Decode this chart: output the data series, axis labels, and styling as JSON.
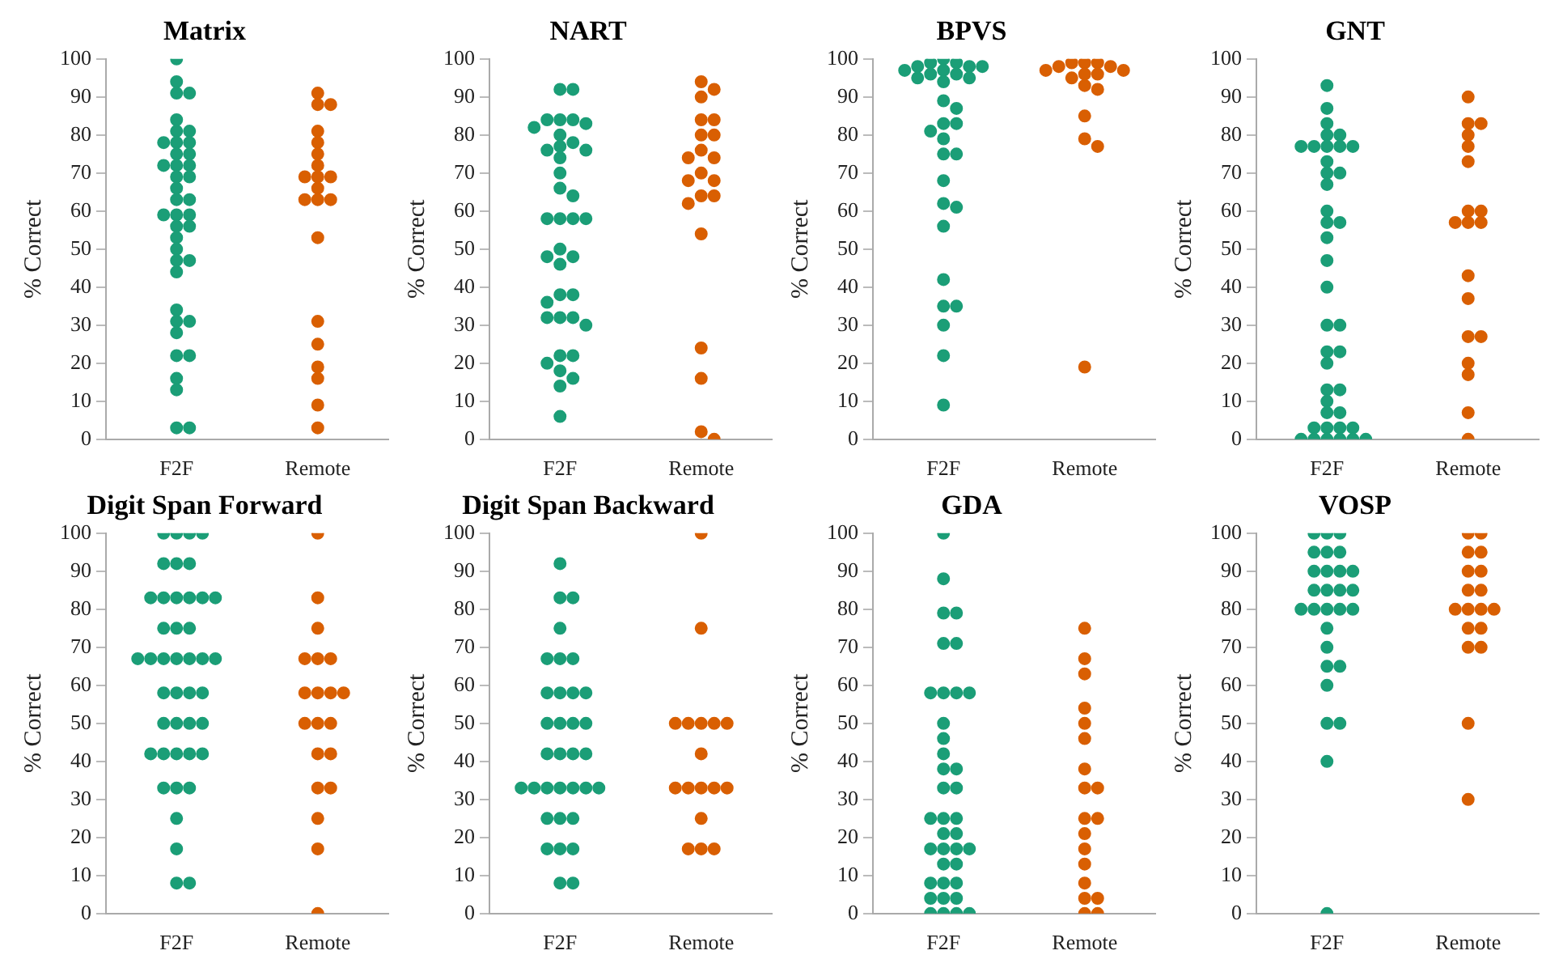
{
  "chart_data": [
    {
      "type": "scatter",
      "title": "Matrix",
      "ylabel": "% Correct",
      "categories": [
        "F2F",
        "Remote"
      ],
      "ylim": [
        0,
        100
      ],
      "yticks": [
        0,
        10,
        20,
        30,
        40,
        50,
        60,
        70,
        80,
        90,
        100
      ],
      "grid": false,
      "legend": false,
      "marker": "circle",
      "series": [
        {
          "color": "#1b9e77",
          "x": [
            "F2F",
            "F2F",
            "F2F",
            "F2F",
            "F2F",
            "F2F",
            "F2F",
            "F2F",
            "F2F",
            "F2F",
            "F2F",
            "F2F",
            "F2F",
            "F2F",
            "F2F",
            "F2F",
            "F2F",
            "F2F",
            "F2F",
            "F2F",
            "F2F",
            "F2F",
            "F2F",
            "F2F",
            "F2F",
            "F2F",
            "F2F",
            "F2F",
            "F2F",
            "F2F",
            "F2F",
            "F2F",
            "F2F",
            "F2F",
            "F2F",
            "F2F",
            "F2F",
            "F2F",
            "F2F",
            "F2F"
          ],
          "values": [
            100,
            94,
            91,
            91,
            84,
            81,
            81,
            78,
            78,
            78,
            75,
            75,
            72,
            72,
            72,
            69,
            69,
            66,
            63,
            63,
            59,
            59,
            59,
            56,
            56,
            53,
            50,
            47,
            47,
            44,
            34,
            31,
            31,
            28,
            22,
            22,
            16,
            13,
            3,
            3
          ]
        },
        {
          "color": "#d95f02",
          "x": [
            "Remote",
            "Remote",
            "Remote",
            "Remote",
            "Remote",
            "Remote",
            "Remote",
            "Remote",
            "Remote",
            "Remote",
            "Remote",
            "Remote",
            "Remote",
            "Remote",
            "Remote",
            "Remote",
            "Remote",
            "Remote",
            "Remote",
            "Remote",
            "Remote"
          ],
          "values": [
            91,
            88,
            88,
            81,
            78,
            75,
            72,
            69,
            69,
            69,
            66,
            63,
            63,
            63,
            53,
            31,
            25,
            19,
            16,
            9,
            3
          ]
        }
      ]
    },
    {
      "type": "scatter",
      "title": "NART",
      "ylabel": "% Correct",
      "categories": [
        "F2F",
        "Remote"
      ],
      "ylim": [
        0,
        100
      ],
      "yticks": [
        0,
        10,
        20,
        30,
        40,
        50,
        60,
        70,
        80,
        90,
        100
      ],
      "grid": false,
      "legend": false,
      "marker": "circle",
      "series": [
        {
          "color": "#1b9e77",
          "x": [
            "F2F",
            "F2F",
            "F2F",
            "F2F",
            "F2F",
            "F2F",
            "F2F",
            "F2F",
            "F2F",
            "F2F",
            "F2F",
            "F2F",
            "F2F",
            "F2F",
            "F2F",
            "F2F",
            "F2F",
            "F2F",
            "F2F",
            "F2F",
            "F2F",
            "F2F",
            "F2F",
            "F2F",
            "F2F",
            "F2F",
            "F2F",
            "F2F",
            "F2F",
            "F2F",
            "F2F",
            "F2F",
            "F2F",
            "F2F",
            "F2F",
            "F2F",
            "F2F",
            "F2F"
          ],
          "values": [
            92,
            92,
            84,
            84,
            84,
            83,
            82,
            80,
            78,
            77,
            76,
            76,
            74,
            70,
            66,
            64,
            58,
            58,
            58,
            58,
            50,
            48,
            48,
            46,
            38,
            38,
            36,
            32,
            32,
            32,
            30,
            22,
            22,
            20,
            18,
            16,
            14,
            6
          ]
        },
        {
          "color": "#d95f02",
          "x": [
            "Remote",
            "Remote",
            "Remote",
            "Remote",
            "Remote",
            "Remote",
            "Remote",
            "Remote",
            "Remote",
            "Remote",
            "Remote",
            "Remote",
            "Remote",
            "Remote",
            "Remote",
            "Remote",
            "Remote",
            "Remote",
            "Remote",
            "Remote",
            "Remote"
          ],
          "values": [
            94,
            92,
            90,
            84,
            84,
            80,
            80,
            76,
            74,
            74,
            70,
            68,
            68,
            64,
            64,
            62,
            54,
            24,
            16,
            2,
            0
          ]
        }
      ]
    },
    {
      "type": "scatter",
      "title": "BPVS",
      "ylabel": "% Correct",
      "categories": [
        "F2F",
        "Remote"
      ],
      "ylim": [
        0,
        100
      ],
      "yticks": [
        0,
        10,
        20,
        30,
        40,
        50,
        60,
        70,
        80,
        90,
        100
      ],
      "grid": false,
      "legend": false,
      "marker": "circle",
      "series": [
        {
          "color": "#1b9e77",
          "x": [
            "F2F",
            "F2F",
            "F2F",
            "F2F",
            "F2F",
            "F2F",
            "F2F",
            "F2F",
            "F2F",
            "F2F",
            "F2F",
            "F2F",
            "F2F",
            "F2F",
            "F2F",
            "F2F",
            "F2F",
            "F2F",
            "F2F",
            "F2F",
            "F2F",
            "F2F",
            "F2F",
            "F2F",
            "F2F",
            "F2F",
            "F2F",
            "F2F",
            "F2F",
            "F2F",
            "F2F"
          ],
          "values": [
            100,
            99,
            99,
            98,
            98,
            98,
            97,
            97,
            96,
            96,
            95,
            95,
            94,
            89,
            87,
            83,
            83,
            81,
            79,
            75,
            75,
            68,
            62,
            61,
            56,
            42,
            35,
            35,
            30,
            22,
            9
          ]
        },
        {
          "color": "#d95f02",
          "x": [
            "Remote",
            "Remote",
            "Remote",
            "Remote",
            "Remote",
            "Remote",
            "Remote",
            "Remote",
            "Remote",
            "Remote",
            "Remote",
            "Remote",
            "Remote",
            "Remote",
            "Remote",
            "Remote"
          ],
          "values": [
            99,
            99,
            99,
            98,
            98,
            97,
            97,
            96,
            96,
            95,
            93,
            92,
            85,
            79,
            77,
            19
          ]
        }
      ]
    },
    {
      "type": "scatter",
      "title": "GNT",
      "ylabel": "% Correct",
      "categories": [
        "F2F",
        "Remote"
      ],
      "ylim": [
        0,
        100
      ],
      "yticks": [
        0,
        10,
        20,
        30,
        40,
        50,
        60,
        70,
        80,
        90,
        100
      ],
      "grid": false,
      "legend": false,
      "marker": "circle",
      "series": [
        {
          "color": "#1b9e77",
          "x": [
            "F2F",
            "F2F",
            "F2F",
            "F2F",
            "F2F",
            "F2F",
            "F2F",
            "F2F",
            "F2F",
            "F2F",
            "F2F",
            "F2F",
            "F2F",
            "F2F",
            "F2F",
            "F2F",
            "F2F",
            "F2F",
            "F2F",
            "F2F",
            "F2F",
            "F2F",
            "F2F",
            "F2F",
            "F2F",
            "F2F",
            "F2F",
            "F2F",
            "F2F",
            "F2F",
            "F2F",
            "F2F",
            "F2F",
            "F2F",
            "F2F",
            "F2F",
            "F2F",
            "F2F",
            "F2F",
            "F2F"
          ],
          "values": [
            93,
            87,
            83,
            80,
            80,
            77,
            77,
            77,
            77,
            77,
            73,
            70,
            70,
            67,
            60,
            57,
            57,
            53,
            47,
            40,
            30,
            30,
            23,
            23,
            20,
            13,
            13,
            10,
            7,
            7,
            3,
            3,
            3,
            3,
            0,
            0,
            0,
            0,
            0,
            0
          ]
        },
        {
          "color": "#d95f02",
          "x": [
            "Remote",
            "Remote",
            "Remote",
            "Remote",
            "Remote",
            "Remote",
            "Remote",
            "Remote",
            "Remote",
            "Remote",
            "Remote",
            "Remote",
            "Remote",
            "Remote",
            "Remote",
            "Remote",
            "Remote",
            "Remote",
            "Remote"
          ],
          "values": [
            90,
            83,
            83,
            80,
            77,
            73,
            60,
            60,
            57,
            57,
            57,
            43,
            37,
            27,
            27,
            20,
            17,
            7,
            0
          ]
        }
      ]
    },
    {
      "type": "scatter",
      "title": "Digit Span Forward",
      "ylabel": "% Correct",
      "categories": [
        "F2F",
        "Remote"
      ],
      "ylim": [
        0,
        100
      ],
      "yticks": [
        0,
        10,
        20,
        30,
        40,
        50,
        60,
        70,
        80,
        90,
        100
      ],
      "grid": false,
      "legend": false,
      "marker": "circle",
      "series": [
        {
          "color": "#1b9e77",
          "x": [
            "F2F",
            "F2F",
            "F2F",
            "F2F",
            "F2F",
            "F2F",
            "F2F",
            "F2F",
            "F2F",
            "F2F",
            "F2F",
            "F2F",
            "F2F",
            "F2F",
            "F2F",
            "F2F",
            "F2F",
            "F2F",
            "F2F",
            "F2F",
            "F2F",
            "F2F",
            "F2F",
            "F2F",
            "F2F",
            "F2F",
            "F2F",
            "F2F",
            "F2F",
            "F2F",
            "F2F",
            "F2F",
            "F2F",
            "F2F",
            "F2F",
            "F2F",
            "F2F",
            "F2F",
            "F2F",
            "F2F",
            "F2F",
            "F2F",
            "F2F"
          ],
          "values": [
            100,
            100,
            100,
            100,
            92,
            92,
            92,
            83,
            83,
            83,
            83,
            83,
            83,
            75,
            75,
            75,
            67,
            67,
            67,
            67,
            67,
            67,
            67,
            58,
            58,
            58,
            58,
            50,
            50,
            50,
            50,
            42,
            42,
            42,
            42,
            42,
            33,
            33,
            33,
            25,
            17,
            8,
            8
          ]
        },
        {
          "color": "#d95f02",
          "x": [
            "Remote",
            "Remote",
            "Remote",
            "Remote",
            "Remote",
            "Remote",
            "Remote",
            "Remote",
            "Remote",
            "Remote",
            "Remote",
            "Remote",
            "Remote",
            "Remote",
            "Remote",
            "Remote",
            "Remote",
            "Remote",
            "Remote",
            "Remote"
          ],
          "values": [
            100,
            83,
            75,
            67,
            67,
            67,
            58,
            58,
            58,
            58,
            50,
            50,
            50,
            42,
            42,
            33,
            33,
            25,
            17,
            0
          ]
        }
      ]
    },
    {
      "type": "scatter",
      "title": "Digit Span Backward",
      "ylabel": "% Correct",
      "categories": [
        "F2F",
        "Remote"
      ],
      "ylim": [
        0,
        100
      ],
      "yticks": [
        0,
        10,
        20,
        30,
        40,
        50,
        60,
        70,
        80,
        90,
        100
      ],
      "grid": false,
      "legend": false,
      "marker": "circle",
      "series": [
        {
          "color": "#1b9e77",
          "x": [
            "F2F",
            "F2F",
            "F2F",
            "F2F",
            "F2F",
            "F2F",
            "F2F",
            "F2F",
            "F2F",
            "F2F",
            "F2F",
            "F2F",
            "F2F",
            "F2F",
            "F2F",
            "F2F",
            "F2F",
            "F2F",
            "F2F",
            "F2F",
            "F2F",
            "F2F",
            "F2F",
            "F2F",
            "F2F",
            "F2F",
            "F2F",
            "F2F",
            "F2F",
            "F2F",
            "F2F",
            "F2F",
            "F2F",
            "F2F"
          ],
          "values": [
            92,
            83,
            83,
            75,
            67,
            67,
            67,
            58,
            58,
            58,
            58,
            50,
            50,
            50,
            50,
            42,
            42,
            42,
            42,
            33,
            33,
            33,
            33,
            33,
            33,
            33,
            25,
            25,
            25,
            17,
            17,
            17,
            8,
            8
          ]
        },
        {
          "color": "#d95f02",
          "x": [
            "Remote",
            "Remote",
            "Remote",
            "Remote",
            "Remote",
            "Remote",
            "Remote",
            "Remote",
            "Remote",
            "Remote",
            "Remote",
            "Remote",
            "Remote",
            "Remote",
            "Remote",
            "Remote",
            "Remote"
          ],
          "values": [
            100,
            75,
            50,
            50,
            50,
            50,
            50,
            42,
            33,
            33,
            33,
            33,
            33,
            25,
            17,
            17,
            17
          ]
        }
      ]
    },
    {
      "type": "scatter",
      "title": "GDA",
      "ylabel": "% Correct",
      "categories": [
        "F2F",
        "Remote"
      ],
      "ylim": [
        0,
        100
      ],
      "yticks": [
        0,
        10,
        20,
        30,
        40,
        50,
        60,
        70,
        80,
        90,
        100
      ],
      "grid": false,
      "legend": false,
      "marker": "circle",
      "series": [
        {
          "color": "#1b9e77",
          "x": [
            "F2F",
            "F2F",
            "F2F",
            "F2F",
            "F2F",
            "F2F",
            "F2F",
            "F2F",
            "F2F",
            "F2F",
            "F2F",
            "F2F",
            "F2F",
            "F2F",
            "F2F",
            "F2F",
            "F2F",
            "F2F",
            "F2F",
            "F2F",
            "F2F",
            "F2F",
            "F2F",
            "F2F",
            "F2F",
            "F2F",
            "F2F",
            "F2F",
            "F2F",
            "F2F",
            "F2F",
            "F2F",
            "F2F",
            "F2F",
            "F2F",
            "F2F",
            "F2F",
            "F2F"
          ],
          "values": [
            100,
            88,
            79,
            79,
            71,
            71,
            58,
            58,
            58,
            58,
            50,
            46,
            42,
            38,
            38,
            33,
            33,
            25,
            25,
            25,
            21,
            21,
            17,
            17,
            17,
            17,
            13,
            13,
            8,
            8,
            8,
            4,
            4,
            4,
            0,
            0,
            0,
            0
          ]
        },
        {
          "color": "#d95f02",
          "x": [
            "Remote",
            "Remote",
            "Remote",
            "Remote",
            "Remote",
            "Remote",
            "Remote",
            "Remote",
            "Remote",
            "Remote",
            "Remote",
            "Remote",
            "Remote",
            "Remote",
            "Remote",
            "Remote",
            "Remote",
            "Remote",
            "Remote"
          ],
          "values": [
            75,
            67,
            63,
            54,
            50,
            46,
            38,
            33,
            33,
            25,
            25,
            21,
            17,
            13,
            8,
            4,
            4,
            0,
            0
          ]
        }
      ]
    },
    {
      "type": "scatter",
      "title": "VOSP",
      "ylabel": "% Correct",
      "categories": [
        "F2F",
        "Remote"
      ],
      "ylim": [
        0,
        100
      ],
      "yticks": [
        0,
        10,
        20,
        30,
        40,
        50,
        60,
        70,
        80,
        90,
        100
      ],
      "grid": false,
      "legend": false,
      "marker": "circle",
      "series": [
        {
          "color": "#1b9e77",
          "x": [
            "F2F",
            "F2F",
            "F2F",
            "F2F",
            "F2F",
            "F2F",
            "F2F",
            "F2F",
            "F2F",
            "F2F",
            "F2F",
            "F2F",
            "F2F",
            "F2F",
            "F2F",
            "F2F",
            "F2F",
            "F2F",
            "F2F",
            "F2F",
            "F2F",
            "F2F",
            "F2F",
            "F2F",
            "F2F",
            "F2F",
            "F2F",
            "F2F"
          ],
          "values": [
            100,
            100,
            100,
            95,
            95,
            95,
            90,
            90,
            90,
            90,
            85,
            85,
            85,
            85,
            80,
            80,
            80,
            80,
            80,
            75,
            70,
            65,
            65,
            60,
            50,
            50,
            40,
            0
          ]
        },
        {
          "color": "#d95f02",
          "x": [
            "Remote",
            "Remote",
            "Remote",
            "Remote",
            "Remote",
            "Remote",
            "Remote",
            "Remote",
            "Remote",
            "Remote",
            "Remote",
            "Remote",
            "Remote",
            "Remote",
            "Remote",
            "Remote",
            "Remote",
            "Remote"
          ],
          "values": [
            100,
            100,
            95,
            95,
            90,
            90,
            85,
            85,
            80,
            80,
            80,
            80,
            75,
            75,
            70,
            70,
            50,
            30
          ]
        }
      ]
    }
  ]
}
